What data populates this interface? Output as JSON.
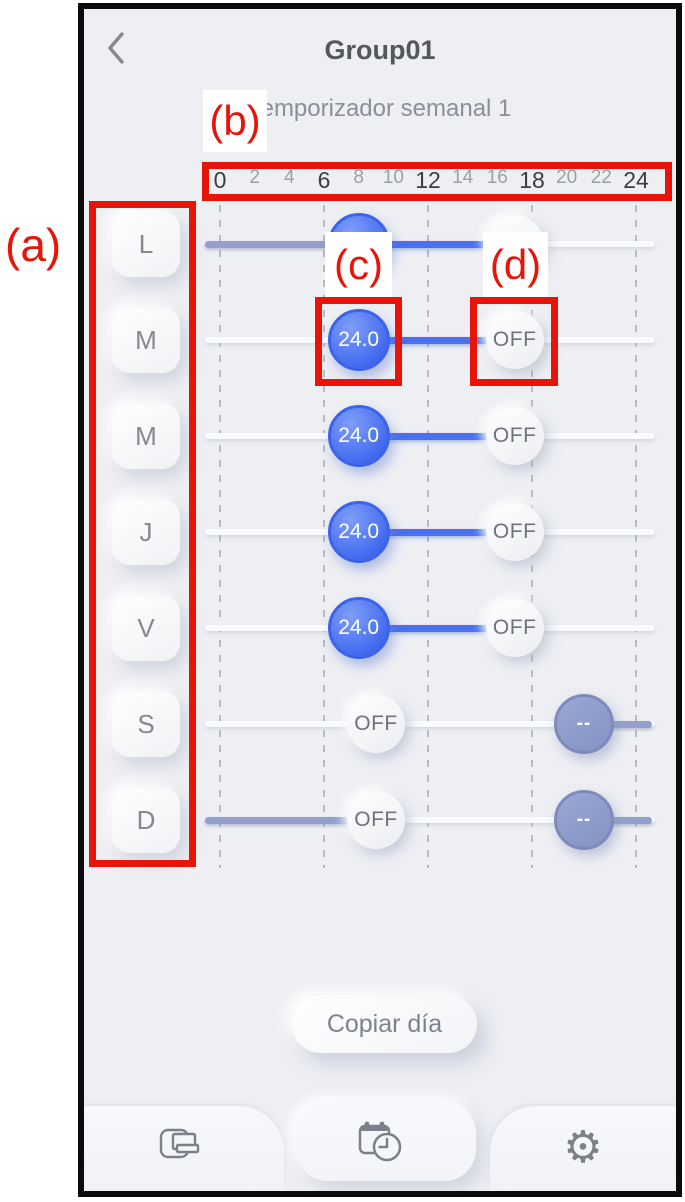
{
  "header": {
    "title": "Group01",
    "subtitle": "Temporizador semanal 1",
    "back_icon": "chevron-left"
  },
  "timeline": {
    "ticks": [
      {
        "label": "0",
        "bold": true
      },
      {
        "label": "2",
        "bold": false
      },
      {
        "label": "4",
        "bold": false
      },
      {
        "label": "6",
        "bold": true
      },
      {
        "label": "8",
        "bold": false
      },
      {
        "label": "10",
        "bold": false
      },
      {
        "label": "12",
        "bold": true
      },
      {
        "label": "14",
        "bold": false
      },
      {
        "label": "16",
        "bold": false
      },
      {
        "label": "18",
        "bold": true
      },
      {
        "label": "20",
        "bold": false
      },
      {
        "label": "22",
        "bold": false
      },
      {
        "label": "24",
        "bold": true
      }
    ],
    "gridline_hours": [
      0,
      6,
      12,
      18,
      24
    ]
  },
  "days": [
    {
      "label": "L"
    },
    {
      "label": "M"
    },
    {
      "label": "M"
    },
    {
      "label": "J"
    },
    {
      "label": "V"
    },
    {
      "label": "S"
    },
    {
      "label": "D"
    }
  ],
  "rows": [
    {
      "day": "L",
      "segments": [
        {
          "from": "start",
          "to": 8,
          "style": "muted"
        },
        {
          "from": 8,
          "to": 17,
          "style": "blue"
        }
      ],
      "bubbles": [
        {
          "type": "blue",
          "hour": 8,
          "label": ""
        },
        {
          "type": "off",
          "hour": 17,
          "label": ""
        }
      ]
    },
    {
      "day": "M",
      "segments": [
        {
          "from": 8,
          "to": 17,
          "style": "blue"
        }
      ],
      "bubbles": [
        {
          "type": "blue",
          "hour": 8,
          "label": "24.0"
        },
        {
          "type": "off",
          "hour": 17,
          "label": "OFF"
        }
      ]
    },
    {
      "day": "M",
      "segments": [
        {
          "from": 8,
          "to": 17,
          "style": "blue"
        }
      ],
      "bubbles": [
        {
          "type": "blue",
          "hour": 8,
          "label": "24.0"
        },
        {
          "type": "off",
          "hour": 17,
          "label": "OFF"
        }
      ]
    },
    {
      "day": "J",
      "segments": [
        {
          "from": 8,
          "to": 17,
          "style": "blue"
        }
      ],
      "bubbles": [
        {
          "type": "blue",
          "hour": 8,
          "label": "24.0"
        },
        {
          "type": "off",
          "hour": 17,
          "label": "OFF"
        }
      ]
    },
    {
      "day": "V",
      "segments": [
        {
          "from": 8,
          "to": 17,
          "style": "blue"
        }
      ],
      "bubbles": [
        {
          "type": "blue",
          "hour": 8,
          "label": "24.0"
        },
        {
          "type": "off",
          "hour": 17,
          "label": "OFF"
        }
      ]
    },
    {
      "day": "S",
      "segments": [
        {
          "from": 21,
          "to": "end",
          "style": "muted"
        }
      ],
      "bubbles": [
        {
          "type": "off",
          "hour": 9,
          "label": "OFF"
        },
        {
          "type": "dash",
          "hour": 21,
          "label": "--"
        }
      ]
    },
    {
      "day": "D",
      "segments": [
        {
          "from": "start",
          "to": 9,
          "style": "muted"
        },
        {
          "from": 21,
          "to": "end",
          "style": "muted"
        }
      ],
      "bubbles": [
        {
          "type": "off",
          "hour": 9,
          "label": "OFF"
        },
        {
          "type": "dash",
          "hour": 21,
          "label": "--"
        }
      ]
    }
  ],
  "buttons": {
    "copy_day": "Copiar día"
  },
  "nav": {
    "items": [
      {
        "icon": "group-screens-icon",
        "active": false
      },
      {
        "icon": "weekly-timer-icon",
        "active": true
      },
      {
        "icon": "settings-gear-icon",
        "active": false
      }
    ],
    "gear_glyph": "⚙"
  },
  "annotations": {
    "a": "(a)",
    "b": "(b)",
    "c": "(c)",
    "d": "(d)"
  },
  "colors": {
    "accent_blue": "#4a6ff1",
    "muted_blue": "#8e9aca",
    "annotation_red": "#e81309",
    "screen_bg": "#edeff3"
  }
}
